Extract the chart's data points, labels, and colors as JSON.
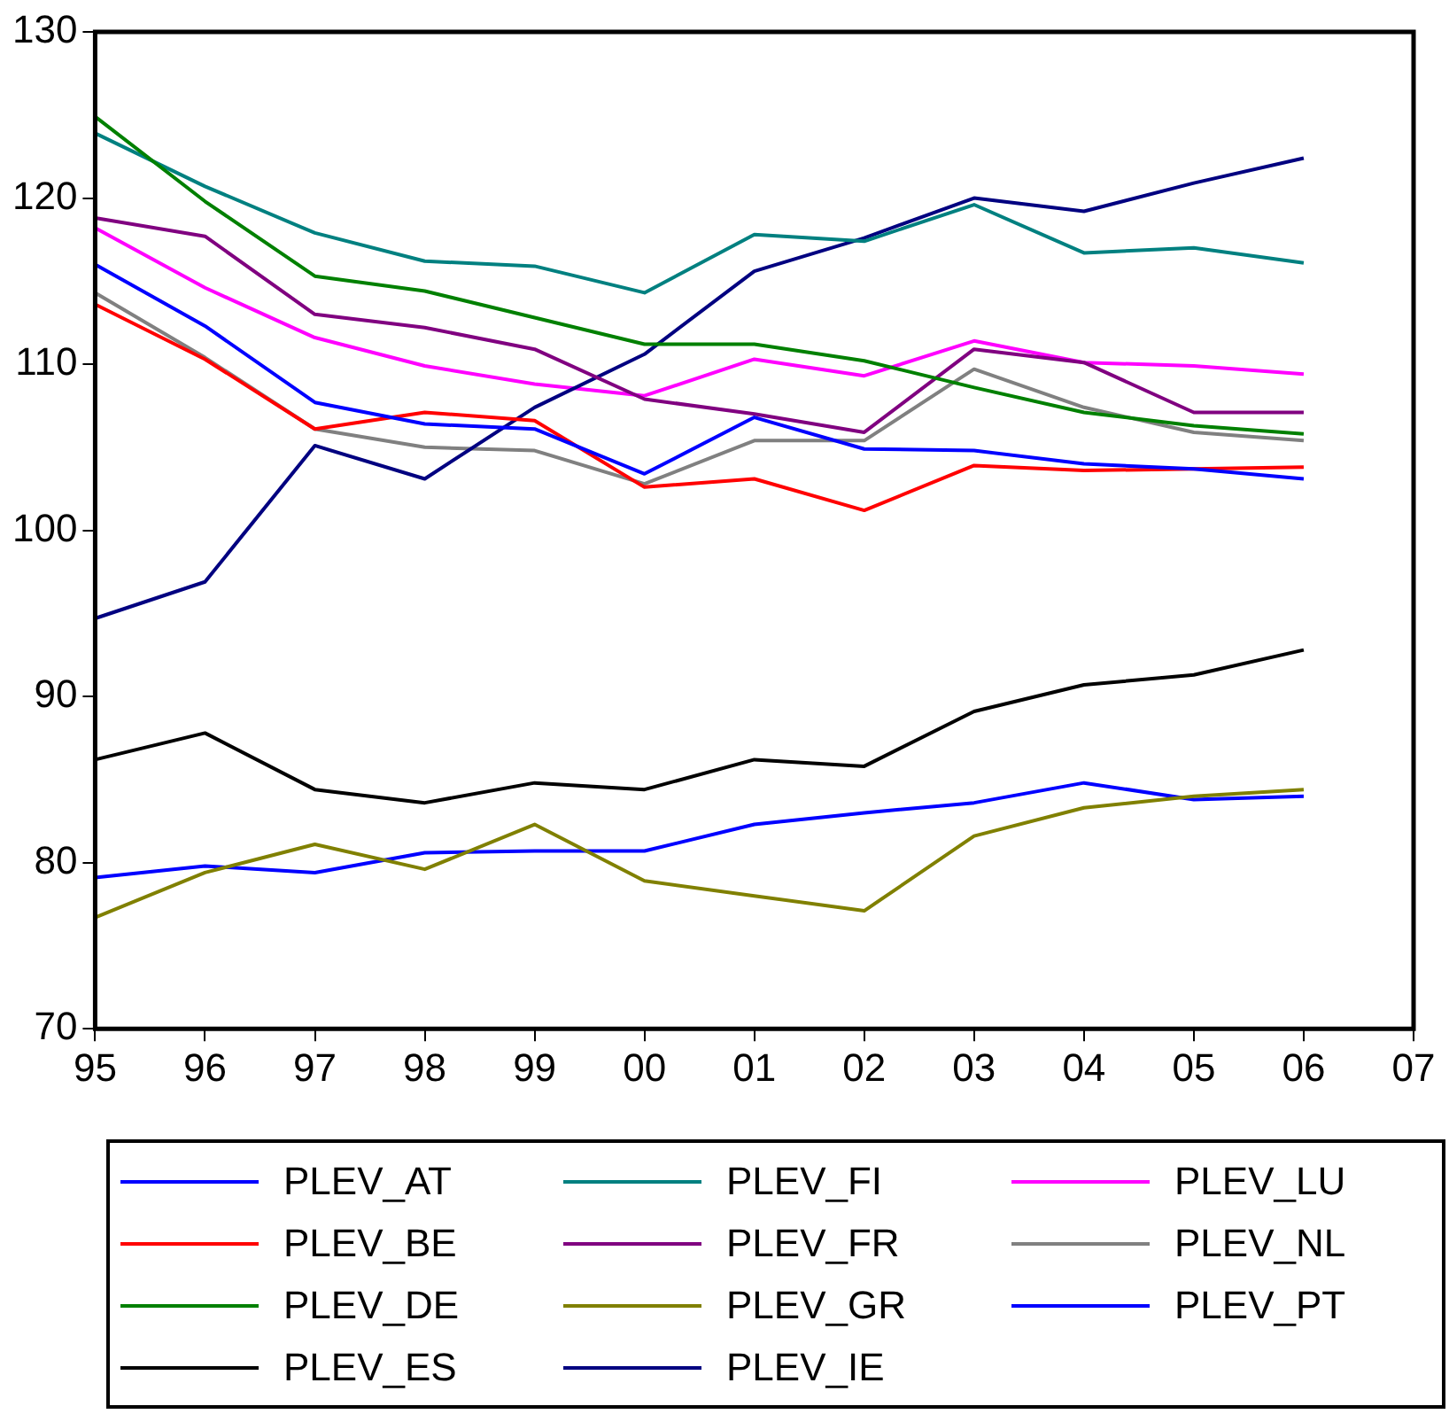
{
  "chart_data": {
    "type": "line",
    "categories": [
      "95",
      "96",
      "97",
      "98",
      "99",
      "00",
      "01",
      "02",
      "03",
      "04",
      "05",
      "06",
      "07"
    ],
    "ylim": [
      70,
      130
    ],
    "yticks": [
      70,
      80,
      90,
      100,
      110,
      120,
      130
    ],
    "legend": "bottom",
    "line_style": "solid",
    "marker": "none",
    "series": [
      {
        "name": "PLEV_AT",
        "color": "#0000ff",
        "values": [
          116.0,
          112.3,
          107.7,
          106.4,
          106.1,
          103.4,
          106.8,
          104.9,
          104.8,
          104.0,
          103.7,
          103.1,
          null
        ]
      },
      {
        "name": "PLEV_BE",
        "color": "#ff0000",
        "values": [
          113.6,
          110.3,
          106.1,
          107.1,
          106.6,
          102.6,
          103.1,
          101.2,
          103.9,
          103.6,
          103.7,
          103.8,
          null
        ]
      },
      {
        "name": "PLEV_DE",
        "color": "#008000",
        "values": [
          124.9,
          119.8,
          115.3,
          114.4,
          112.8,
          111.2,
          111.2,
          110.2,
          108.6,
          107.1,
          106.3,
          105.8,
          null
        ]
      },
      {
        "name": "PLEV_ES",
        "color": "#000000",
        "values": [
          86.2,
          87.8,
          84.4,
          83.6,
          84.8,
          84.4,
          86.2,
          85.8,
          89.1,
          90.7,
          91.3,
          92.8,
          null
        ]
      },
      {
        "name": "PLEV_FI",
        "color": "#008080",
        "values": [
          123.9,
          120.7,
          117.9,
          116.2,
          115.9,
          114.3,
          117.8,
          117.4,
          119.6,
          116.7,
          117.0,
          116.1,
          null
        ]
      },
      {
        "name": "PLEV_FR",
        "color": "#800080",
        "values": [
          118.8,
          117.7,
          113.0,
          112.2,
          110.9,
          107.9,
          107.0,
          105.9,
          110.9,
          110.1,
          107.1,
          107.1,
          null
        ]
      },
      {
        "name": "PLEV_GR",
        "color": "#808000",
        "values": [
          76.7,
          79.4,
          81.1,
          79.6,
          82.3,
          78.9,
          78.0,
          77.1,
          81.6,
          83.3,
          84.0,
          84.4,
          null
        ]
      },
      {
        "name": "PLEV_IE",
        "color": "#000080",
        "values": [
          94.7,
          96.9,
          105.1,
          103.1,
          107.4,
          110.6,
          115.6,
          117.6,
          120.0,
          119.2,
          120.9,
          122.4,
          null
        ]
      },
      {
        "name": "PLEV_LU",
        "color": "#ff00ff",
        "values": [
          118.2,
          114.6,
          111.6,
          109.9,
          108.8,
          108.1,
          110.3,
          109.3,
          111.4,
          110.1,
          109.9,
          109.4,
          null
        ]
      },
      {
        "name": "PLEV_NL",
        "color": "#808080",
        "values": [
          114.3,
          110.4,
          106.1,
          105.0,
          104.8,
          102.8,
          105.4,
          105.4,
          109.7,
          107.4,
          105.9,
          105.4,
          null
        ]
      },
      {
        "name": "PLEV_PT",
        "color": "#0000ff",
        "values": [
          79.1,
          79.8,
          79.4,
          80.6,
          80.7,
          80.7,
          82.3,
          83.0,
          83.6,
          84.8,
          83.8,
          84.0,
          null
        ]
      }
    ]
  }
}
